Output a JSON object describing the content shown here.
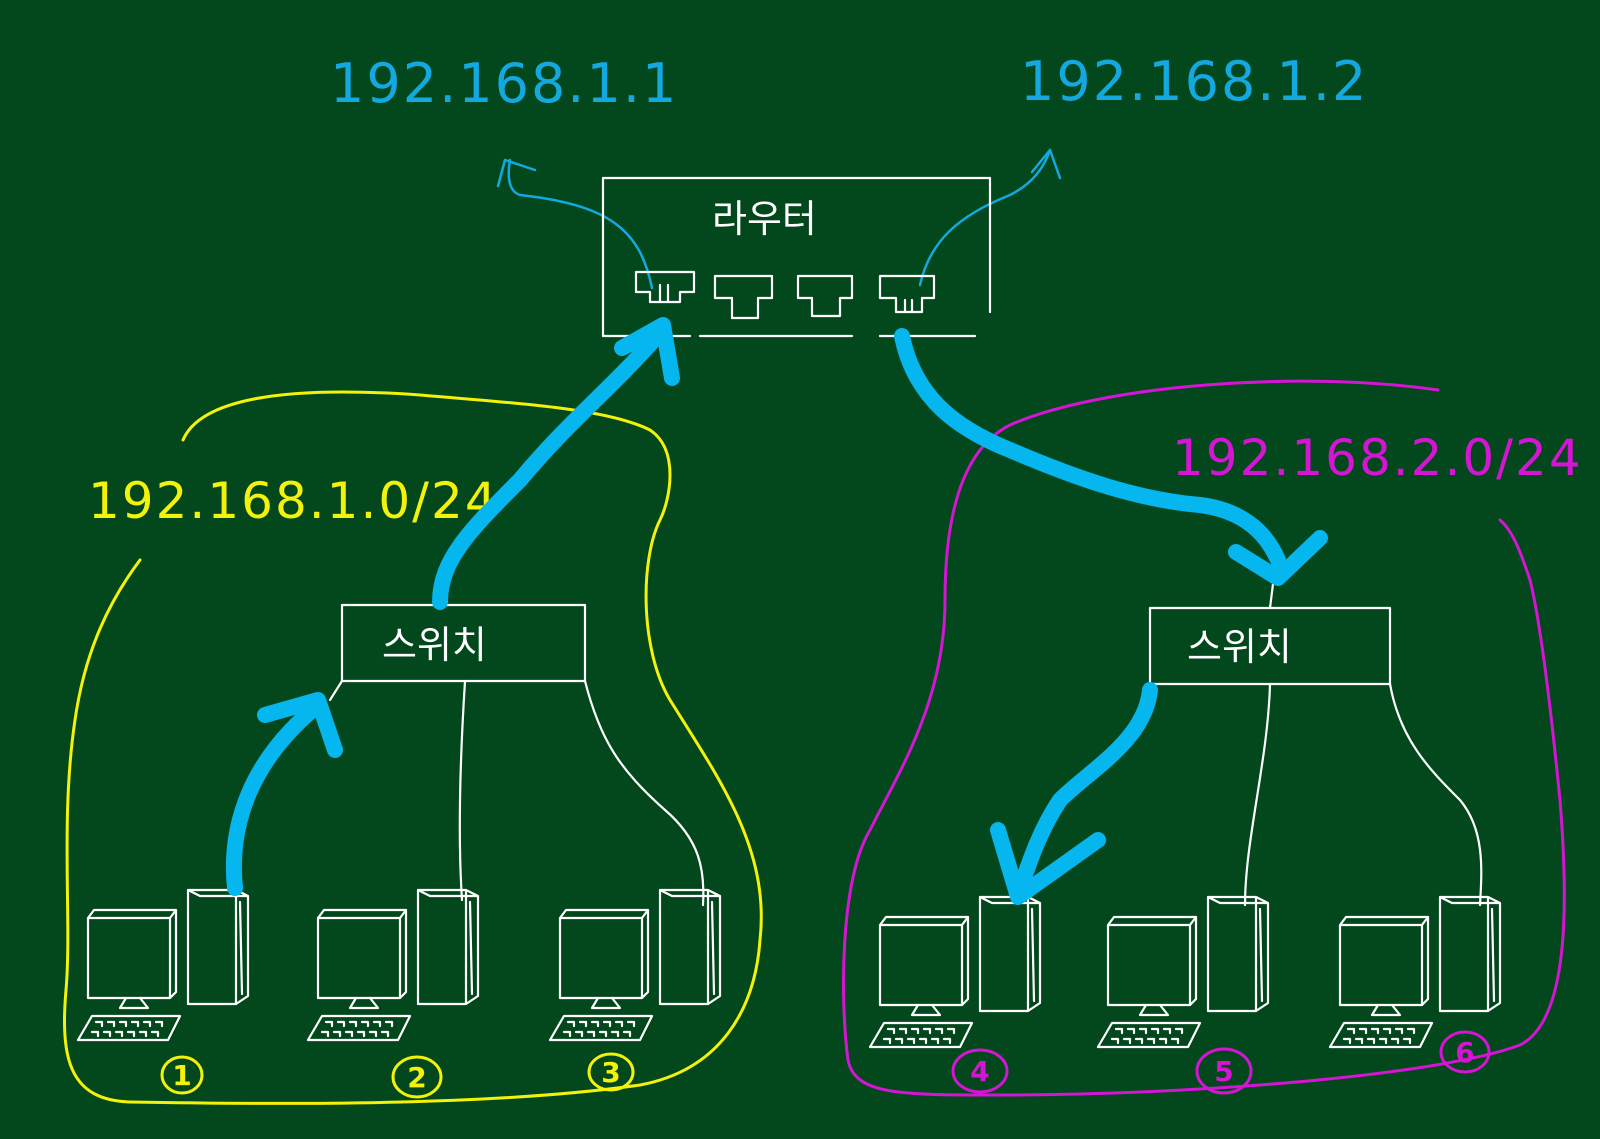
{
  "router": {
    "label": "라우터",
    "port_left_ip": "192.168.1.1",
    "port_right_ip": "192.168.1.2"
  },
  "networks": [
    {
      "cidr": "192.168.1.0/24",
      "color": "#f2f20a",
      "switch_label": "스위치",
      "hosts": [
        "1",
        "2",
        "3"
      ]
    },
    {
      "cidr": "192.168.2.0/24",
      "color": "#d415d4",
      "switch_label": "스위치",
      "hosts": [
        "4",
        "5",
        "6"
      ]
    }
  ],
  "colors": {
    "background": "#03471c",
    "ip_text": "#13a9e0",
    "flow_arrow": "#06b6ee",
    "line": "#ffffff"
  }
}
